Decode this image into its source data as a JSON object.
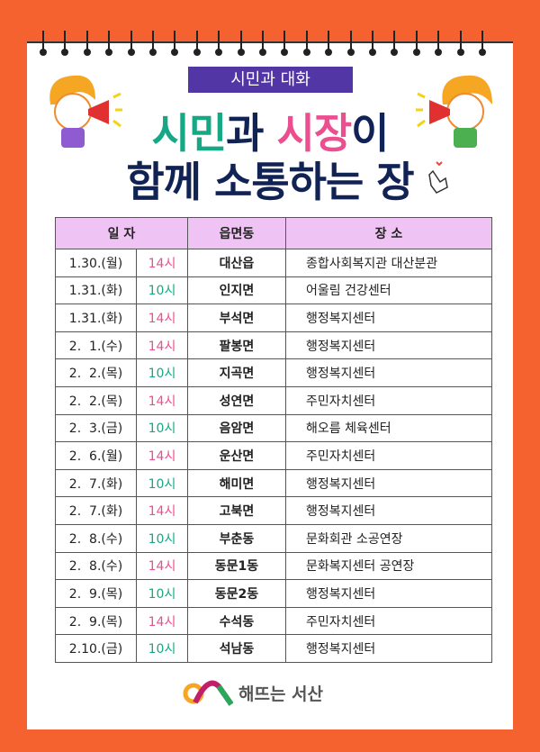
{
  "banner": "시민과 대화",
  "title": {
    "line1_a": "시민",
    "line1_b": "과 ",
    "line1_c": "시장",
    "line1_d": "이",
    "line2": "함께 소통하는 장"
  },
  "colors": {
    "background": "#f5622f",
    "banner": "#5236a5",
    "green": "#16a884",
    "pink": "#ec4f8f",
    "header": "#efc3f3",
    "navy": "#112255"
  },
  "table": {
    "headers": [
      "일 자",
      "읍면동",
      "장 소"
    ],
    "rows": [
      {
        "date": "1.30.(월)",
        "time": "14시",
        "town": "대산읍",
        "place": "종합사회복지관 대산분관"
      },
      {
        "date": "1.31.(화)",
        "time": "10시",
        "town": "인지면",
        "place": "어울림 건강센터"
      },
      {
        "date": "1.31.(화)",
        "time": "14시",
        "town": "부석면",
        "place": "행정복지센터"
      },
      {
        "date": "2.  1.(수)",
        "time": "14시",
        "town": "팔봉면",
        "place": "행정복지센터"
      },
      {
        "date": "2.  2.(목)",
        "time": "10시",
        "town": "지곡면",
        "place": "행정복지센터"
      },
      {
        "date": "2.  2.(목)",
        "time": "14시",
        "town": "성연면",
        "place": "주민자치센터"
      },
      {
        "date": "2.  3.(금)",
        "time": "10시",
        "town": "음암면",
        "place": "해오름 체육센터"
      },
      {
        "date": "2.  6.(월)",
        "time": "14시",
        "town": "운산면",
        "place": "주민자치센터"
      },
      {
        "date": "2.  7.(화)",
        "time": "10시",
        "town": "해미면",
        "place": "행정복지센터"
      },
      {
        "date": "2.  7.(화)",
        "time": "14시",
        "town": "고북면",
        "place": "행정복지센터"
      },
      {
        "date": "2.  8.(수)",
        "time": "10시",
        "town": "부춘동",
        "place": "문화회관 소공연장"
      },
      {
        "date": "2.  8.(수)",
        "time": "14시",
        "town": "동문1동",
        "place": "문화복지센터 공연장"
      },
      {
        "date": "2.  9.(목)",
        "time": "10시",
        "town": "동문2동",
        "place": "행정복지센터"
      },
      {
        "date": "2.  9.(목)",
        "time": "14시",
        "town": "수석동",
        "place": "주민자치센터"
      },
      {
        "date": "2.10.(금)",
        "time": "10시",
        "town": "석남동",
        "place": "행정복지센터"
      }
    ]
  },
  "logo": {
    "text": "해뜨는 서산"
  }
}
